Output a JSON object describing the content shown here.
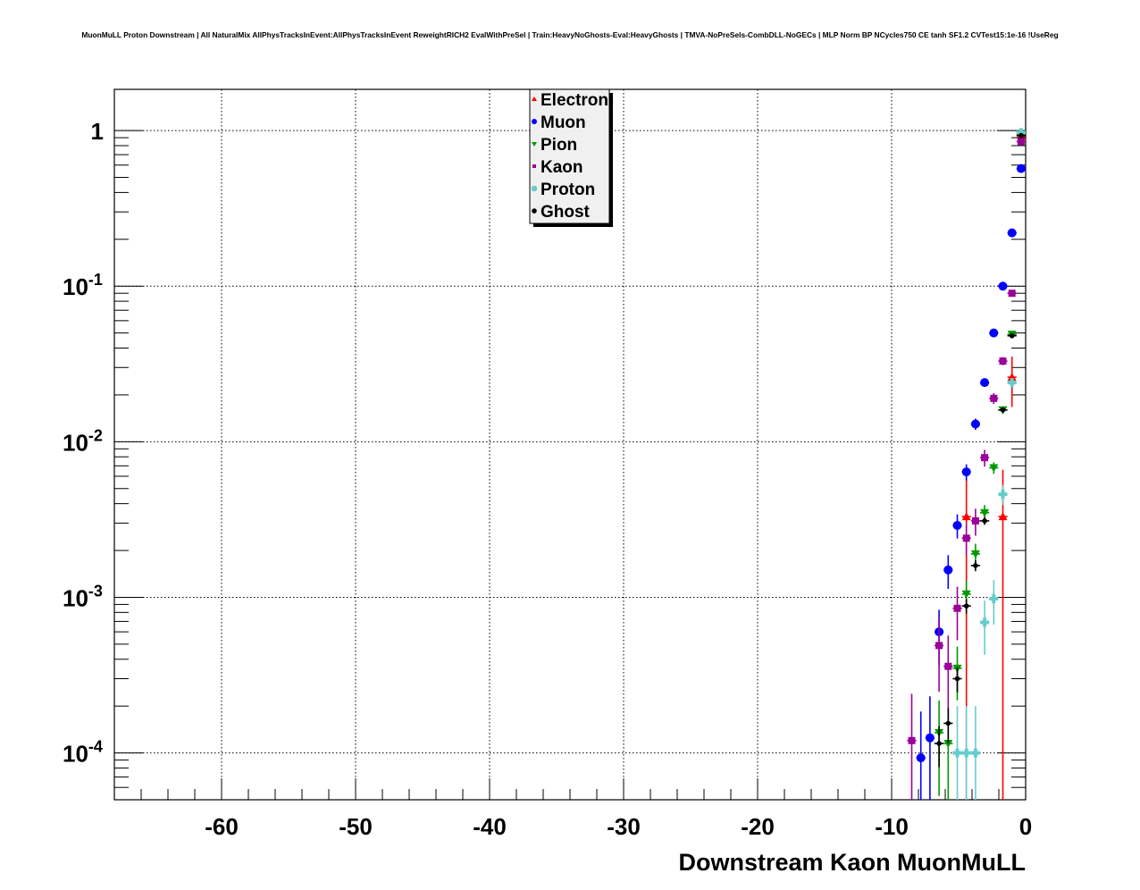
{
  "chart_data": {
    "type": "scatter",
    "title": "MuonMuLL Proton Downstream | All NaturalMix AllPhysTracksInEvent:AllPhysTracksInEvent ReweightRICH2 EvalWithPreSel | Train:HeavyNoGhosts-Eval:HeavyGhosts | TMVA-NoPreSels-CombDLL-NoGECs | MLP Norm BP NCycles750 CE tanh SF1.2 CVTest15:1e-16 !UseReg",
    "xlabel": "Downstream Kaon MuonMuLL",
    "ylabel": "",
    "xlim": [
      -68,
      0
    ],
    "ylim": [
      5e-05,
      1.84
    ],
    "yscale": "log",
    "bin_width": 0.68,
    "grid": true,
    "legend_position": "top-center",
    "x_ticks": [
      {
        "value": -60,
        "label": "-60"
      },
      {
        "value": -50,
        "label": "-50"
      },
      {
        "value": -40,
        "label": "-40"
      },
      {
        "value": -30,
        "label": "-30"
      },
      {
        "value": -20,
        "label": "-20"
      },
      {
        "value": -10,
        "label": "-10"
      },
      {
        "value": 0,
        "label": "0"
      }
    ],
    "y_ticks": [
      {
        "value": 1,
        "base": "1",
        "exp": ""
      },
      {
        "value": 0.1,
        "base": "10",
        "exp": "-1"
      },
      {
        "value": 0.01,
        "base": "10",
        "exp": "-2"
      },
      {
        "value": 0.001,
        "base": "10",
        "exp": "-3"
      },
      {
        "value": 0.0001,
        "base": "10",
        "exp": "-4"
      }
    ],
    "series": [
      {
        "name": "Electron",
        "color": "#ff0000",
        "marker": "triangle-up",
        "stat_weight": 0.0033,
        "x": [
          -0.34,
          -1.02,
          -1.7,
          -4.42
        ],
        "y": [
          0.95,
          0.026,
          0.0033,
          0.0033
        ]
      },
      {
        "name": "Muon",
        "color": "#0000ff",
        "marker": "circle",
        "stat_weight": 9e-05,
        "x": [
          -0.34,
          -1.02,
          -1.7,
          -2.38,
          -3.06,
          -3.74,
          -4.42,
          -5.1,
          -5.78,
          -6.46,
          -7.14,
          -7.82
        ],
        "y": [
          0.57,
          0.22,
          0.1,
          0.05,
          0.024,
          0.013,
          0.0064,
          0.0029,
          0.0015,
          0.0006,
          0.000125,
          9.3e-05
        ]
      },
      {
        "name": "Pion",
        "color": "#009900",
        "marker": "triangle-down",
        "stat_weight": 5e-05,
        "x": [
          -0.34,
          -1.02,
          -1.7,
          -2.38,
          -3.06,
          -3.74,
          -4.42,
          -5.1,
          -5.78,
          -6.46
        ],
        "y": [
          0.95,
          0.049,
          0.016,
          0.0068,
          0.0035,
          0.0019,
          0.00105,
          0.00035,
          0.000115,
          0.000135
        ]
      },
      {
        "name": "Kaon",
        "color": "#990099",
        "marker": "square",
        "stat_weight": 0.00012,
        "x": [
          -0.34,
          -1.02,
          -1.7,
          -2.38,
          -3.06,
          -3.74,
          -4.42,
          -5.1,
          -5.78,
          -6.46,
          -8.5
        ],
        "y": [
          0.85,
          0.09,
          0.033,
          0.019,
          0.0079,
          0.0031,
          0.0024,
          0.00085,
          0.00036,
          0.00049,
          0.00012
        ]
      },
      {
        "name": "Proton",
        "color": "#66cccc",
        "marker": "cross",
        "stat_weight": 0.0001,
        "x": [
          -0.34,
          -1.02,
          -1.7,
          -2.38,
          -3.06,
          -3.74,
          -4.42,
          -5.1
        ],
        "y": [
          0.97,
          0.024,
          0.0046,
          0.00098,
          0.00069,
          0.0001,
          0.0001,
          0.0001
        ]
      },
      {
        "name": "Ghost",
        "color": "#000000",
        "marker": "diamond",
        "stat_weight": 1e-05,
        "x": [
          -0.34,
          -1.02,
          -1.7,
          -3.06,
          -3.74,
          -4.42,
          -5.1,
          -5.78,
          -6.46
        ],
        "y": [
          0.93,
          0.048,
          0.016,
          0.0031,
          0.0016,
          0.00088,
          0.0003,
          0.000155,
          0.000115
        ]
      }
    ]
  }
}
